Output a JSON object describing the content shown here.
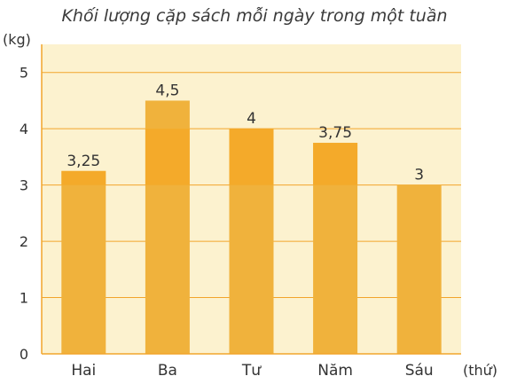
{
  "colors": {
    "plot_background": "#fcf2cf",
    "gridline": "#f2a52b",
    "axis": "#f2a52b",
    "bar": "#f0b23c",
    "bar_band": "#f7a41c"
  },
  "chart_data": {
    "type": "bar",
    "title": "Khối lượng cặp sách mỗi ngày trong một tuần",
    "ylabel": "(kg)",
    "xlabel": "(thứ)",
    "categories": [
      "Hai",
      "Ba",
      "Tư",
      "Năm",
      "Sáu"
    ],
    "values": [
      3.25,
      4.5,
      4,
      3.75,
      3
    ],
    "value_labels": [
      "3,25",
      "4,5",
      "4",
      "3,75",
      "3"
    ],
    "ylim": [
      0,
      5.5
    ],
    "yticks": [
      0,
      1,
      2,
      3,
      4,
      5
    ],
    "ytick_labels": [
      "0",
      "1",
      "2",
      "3",
      "4",
      "5"
    ],
    "grid": true,
    "legend": "none"
  }
}
